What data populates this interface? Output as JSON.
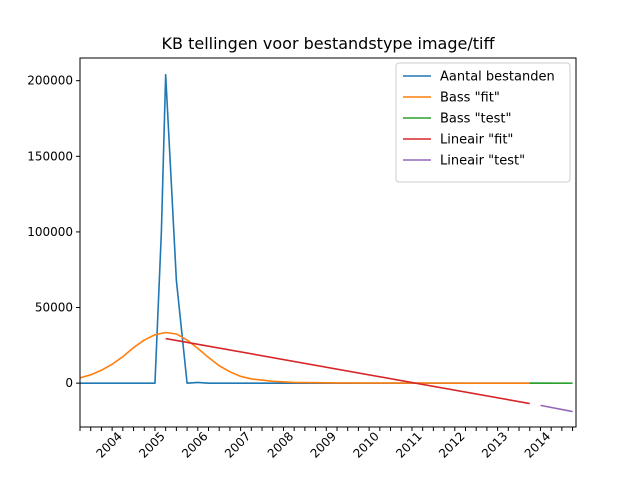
{
  "chart_data": {
    "type": "line",
    "title": "KB tellingen voor bestandstype image/tiff",
    "xlabel": "",
    "ylabel": "",
    "ylim": [
      -29000,
      215000
    ],
    "y_ticks": [
      0,
      50000,
      100000,
      150000,
      200000
    ],
    "y_tick_labels": [
      "0",
      "50000",
      "100000",
      "150000",
      "200000"
    ],
    "x_range": [
      2003.0,
      2014.58
    ],
    "x_tick_labels": [
      "2004",
      "2005",
      "2006",
      "2007",
      "2008",
      "2009",
      "2010",
      "2011",
      "2012",
      "2013",
      "2014"
    ],
    "x_major_ticks": [
      2004,
      2005,
      2006,
      2007,
      2008,
      2009,
      2010,
      2011,
      2012,
      2013,
      2014
    ],
    "legend_position": "top-right",
    "grid": false,
    "series": [
      {
        "name": "Aantal bestanden",
        "color": "#1f77b4",
        "points": [
          [
            2003.0,
            0
          ],
          [
            2003.5,
            0
          ],
          [
            2004.0,
            0
          ],
          [
            2004.5,
            0
          ],
          [
            2004.75,
            0
          ],
          [
            2004.9,
            100000
          ],
          [
            2005.0,
            204000
          ],
          [
            2005.25,
            68000
          ],
          [
            2005.5,
            0
          ],
          [
            2005.75,
            500
          ],
          [
            2006.0,
            0
          ],
          [
            2007.0,
            0
          ],
          [
            2008.0,
            0
          ],
          [
            2009.0,
            0
          ],
          [
            2010.0,
            0
          ],
          [
            2011.0,
            0
          ],
          [
            2012.0,
            0
          ],
          [
            2013.0,
            0
          ],
          [
            2013.5,
            0
          ],
          [
            2014.0,
            0
          ]
        ]
      },
      {
        "name": "Bass \"fit\"",
        "color": "#ff7f0e",
        "points": [
          [
            2003.0,
            3500
          ],
          [
            2003.25,
            5500
          ],
          [
            2003.5,
            8500
          ],
          [
            2003.75,
            12500
          ],
          [
            2004.0,
            17500
          ],
          [
            2004.25,
            23500
          ],
          [
            2004.5,
            28500
          ],
          [
            2004.75,
            32000
          ],
          [
            2005.0,
            33500
          ],
          [
            2005.25,
            32500
          ],
          [
            2005.5,
            28500
          ],
          [
            2005.75,
            23000
          ],
          [
            2006.0,
            17000
          ],
          [
            2006.25,
            11500
          ],
          [
            2006.5,
            7500
          ],
          [
            2006.75,
            4500
          ],
          [
            2007.0,
            2800
          ],
          [
            2007.5,
            1200
          ],
          [
            2008.0,
            500
          ],
          [
            2009.0,
            150
          ],
          [
            2010.0,
            50
          ],
          [
            2011.0,
            20
          ],
          [
            2012.0,
            5
          ],
          [
            2013.0,
            0
          ],
          [
            2013.5,
            0
          ]
        ]
      },
      {
        "name": "Bass \"test\"",
        "color": "#2ca02c",
        "points": [
          [
            2013.5,
            0
          ],
          [
            2014.0,
            0
          ],
          [
            2014.5,
            0
          ]
        ]
      },
      {
        "name": "Lineair \"fit\"",
        "color": "#d62728",
        "points": [
          [
            2005.0,
            29500
          ],
          [
            2013.5,
            -13500
          ]
        ]
      },
      {
        "name": "Lineair \"test\"",
        "color": "#9467bd",
        "points": [
          [
            2013.75,
            -14700
          ],
          [
            2014.5,
            -18800
          ]
        ]
      }
    ]
  }
}
